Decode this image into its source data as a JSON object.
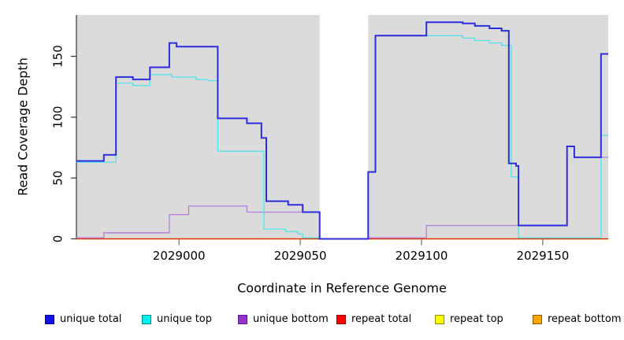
{
  "figure": {
    "x_axis_label": "Coordinate in Reference Genome",
    "y_axis_label": "Read Coverage Depth"
  },
  "legend": {
    "items": [
      {
        "label": "unique total",
        "fill": "#1212E8",
        "border": "#00008B"
      },
      {
        "label": "unique top",
        "fill": "#00F0F0",
        "border": "#008B8B"
      },
      {
        "label": "unique bottom",
        "fill": "#9932CC",
        "border": "#5B1A8B"
      },
      {
        "label": "repeat total",
        "fill": "#FF0000",
        "border": "#8B0000"
      },
      {
        "label": "repeat top",
        "fill": "#FFFF00",
        "border": "#8B8B00"
      },
      {
        "label": "repeat bottom",
        "fill": "#FFA500",
        "border": "#8B5A00"
      }
    ]
  },
  "chart_data": {
    "type": "line",
    "subtype": "step-after",
    "title": "",
    "xlabel": "Coordinate in Reference Genome",
    "ylabel": "Read Coverage Depth",
    "xlim": [
      2028957.7,
      2029177
    ],
    "ylim": [
      0,
      184
    ],
    "x_ticks": [
      2029000,
      2029050,
      2029100,
      2029150
    ],
    "y_ticks": [
      0,
      50,
      100,
      150
    ],
    "grid": false,
    "legend_position": "bottom",
    "plot_background": "#ffffff",
    "shaded_regions": [
      {
        "x0": 2028957.7,
        "x1": 2029058,
        "color": "#DBDBDB"
      },
      {
        "x0": 2029078,
        "x1": 2029177,
        "color": "#DBDBDB"
      }
    ],
    "series": [
      {
        "name": "unique total",
        "color": "#2D2DDF",
        "width": 2,
        "step_points": [
          [
            2028957.7,
            64
          ],
          [
            2028969,
            69
          ],
          [
            2028974,
            133
          ],
          [
            2028981,
            131
          ],
          [
            2028988,
            141
          ],
          [
            2028996,
            161
          ],
          [
            2028999,
            158
          ],
          [
            2029016,
            99
          ],
          [
            2029028,
            95
          ],
          [
            2029034,
            83
          ],
          [
            2029036,
            31
          ],
          [
            2029045,
            28
          ],
          [
            2029051,
            22
          ],
          [
            2029058,
            0
          ],
          [
            2029078,
            55
          ],
          [
            2029081,
            167
          ],
          [
            2029102,
            178
          ],
          [
            2029117,
            177
          ],
          [
            2029122,
            175
          ],
          [
            2029128,
            173
          ],
          [
            2029133,
            171
          ],
          [
            2029136,
            62
          ],
          [
            2029139,
            60
          ],
          [
            2029140,
            11
          ],
          [
            2029160,
            76
          ],
          [
            2029163,
            67
          ],
          [
            2029174,
            152
          ]
        ]
      },
      {
        "name": "unique top",
        "color": "#55E2EA",
        "width": 1.3,
        "step_points": [
          [
            2028957.7,
            63
          ],
          [
            2028974,
            128
          ],
          [
            2028981,
            126
          ],
          [
            2028988,
            135
          ],
          [
            2028997,
            133
          ],
          [
            2029007,
            131
          ],
          [
            2029012,
            130
          ],
          [
            2029016,
            72
          ],
          [
            2029035,
            8
          ],
          [
            2029044,
            6
          ],
          [
            2029049,
            4
          ],
          [
            2029051,
            1
          ],
          [
            2029058,
            0
          ],
          [
            2029078,
            55
          ],
          [
            2029081,
            167
          ],
          [
            2029117,
            165
          ],
          [
            2029122,
            163
          ],
          [
            2029128,
            161
          ],
          [
            2029133,
            159
          ],
          [
            2029137,
            51
          ],
          [
            2029140,
            1
          ],
          [
            2029174,
            85
          ]
        ]
      },
      {
        "name": "unique bottom",
        "color": "#B77CDE",
        "width": 1.3,
        "step_points": [
          [
            2028957.7,
            1
          ],
          [
            2028969,
            5
          ],
          [
            2028996,
            20
          ],
          [
            2029004,
            27
          ],
          [
            2029028,
            22
          ],
          [
            2029058,
            0
          ],
          [
            2029078,
            1
          ],
          [
            2029102,
            11
          ],
          [
            2029160,
            76
          ],
          [
            2029163,
            67
          ]
        ]
      },
      {
        "name": "repeat total",
        "color": "#E02020",
        "width": 1.3,
        "step_points": [
          [
            2028957.7,
            0
          ]
        ]
      },
      {
        "name": "repeat top",
        "color": "#FFFF00",
        "width": 1.3,
        "step_points": [
          [
            2028957.7,
            0
          ]
        ]
      },
      {
        "name": "repeat bottom",
        "color": "#FF9E00",
        "width": 1.6,
        "step_points": [
          [
            2028957.7,
            0
          ]
        ]
      }
    ]
  }
}
